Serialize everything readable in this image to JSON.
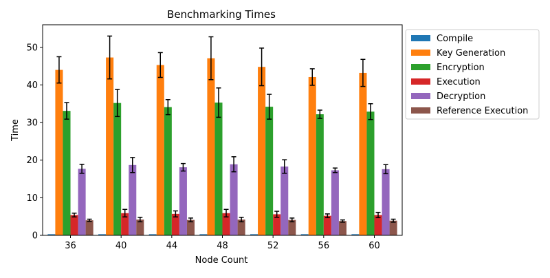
{
  "chart_data": {
    "type": "bar",
    "title": "Benchmarking Times",
    "xlabel": "Node Count",
    "ylabel": "Time",
    "categories": [
      "36",
      "40",
      "44",
      "48",
      "52",
      "56",
      "60"
    ],
    "ylim": [
      0,
      56
    ],
    "yticks": [
      0,
      10,
      20,
      30,
      40,
      50
    ],
    "grid": false,
    "legend_position": "outside-right",
    "series": [
      {
        "name": "Compile",
        "color": "#1f77b4",
        "values": [
          0.3,
          0.3,
          0.3,
          0.3,
          0.3,
          0.3,
          0.3
        ],
        "errors": [
          0,
          0,
          0,
          0,
          0,
          0,
          0
        ]
      },
      {
        "name": "Key Generation",
        "color": "#ff7f0e",
        "values": [
          44.0,
          47.3,
          45.3,
          47.1,
          44.8,
          42.1,
          43.2
        ],
        "errors": [
          3.5,
          5.7,
          3.3,
          5.7,
          5.0,
          2.2,
          3.6
        ]
      },
      {
        "name": "Encryption",
        "color": "#2ca02c",
        "values": [
          33.1,
          35.2,
          34.1,
          35.3,
          34.2,
          32.2,
          32.9
        ],
        "errors": [
          2.2,
          3.6,
          2.0,
          3.9,
          3.3,
          1.1,
          2.1
        ]
      },
      {
        "name": "Execution",
        "color": "#d62728",
        "values": [
          5.4,
          5.9,
          5.7,
          5.9,
          5.6,
          5.2,
          5.4
        ],
        "errors": [
          0.5,
          1.0,
          0.8,
          1.0,
          0.8,
          0.5,
          0.7
        ]
      },
      {
        "name": "Decryption",
        "color": "#9467bd",
        "values": [
          17.7,
          18.7,
          18.1,
          18.9,
          18.3,
          17.3,
          17.6
        ],
        "errors": [
          1.2,
          2.0,
          1.0,
          2.0,
          1.8,
          0.6,
          1.2
        ]
      },
      {
        "name": "Reference Execution",
        "color": "#8c564b",
        "values": [
          4.0,
          4.2,
          4.1,
          4.2,
          4.1,
          3.8,
          3.9
        ],
        "errors": [
          0.3,
          0.6,
          0.5,
          0.6,
          0.5,
          0.3,
          0.4
        ]
      }
    ]
  }
}
